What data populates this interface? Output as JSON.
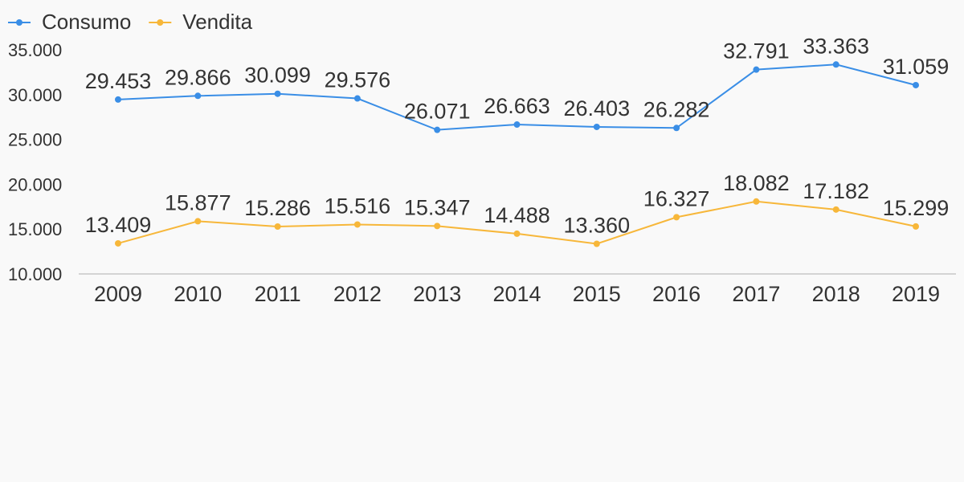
{
  "chart_data": {
    "type": "line",
    "categories": [
      "2009",
      "2010",
      "2011",
      "2012",
      "2013",
      "2014",
      "2015",
      "2016",
      "2017",
      "2018",
      "2019"
    ],
    "series": [
      {
        "name": "Consumo",
        "color": "#3a8ee6",
        "values": [
          29453,
          29866,
          30099,
          29576,
          26071,
          26663,
          26403,
          26282,
          32791,
          33363,
          31059
        ],
        "labels": [
          "29.453",
          "29.866",
          "30.099",
          "29.576",
          "26.071",
          "26.663",
          "26.403",
          "26.282",
          "32.791",
          "33.363",
          "31.059"
        ]
      },
      {
        "name": "Vendita",
        "color": "#f7b73a",
        "values": [
          13409,
          15877,
          15286,
          15516,
          15347,
          14488,
          13360,
          16327,
          18082,
          17182,
          15299
        ],
        "labels": [
          "13.409",
          "15.877",
          "15.286",
          "15.516",
          "15.347",
          "14.488",
          "13.360",
          "16.327",
          "18.082",
          "17.182",
          "15.299"
        ]
      }
    ],
    "ylim": [
      10000,
      35000
    ],
    "yticks": [
      10000,
      15000,
      20000,
      25000,
      30000,
      35000
    ],
    "ytick_labels": [
      "10.000",
      "15.000",
      "20.000",
      "25.000",
      "30.000",
      "35.000"
    ],
    "grid": false,
    "legend_position": "top-left",
    "axis_color": "#d4d4d4"
  }
}
